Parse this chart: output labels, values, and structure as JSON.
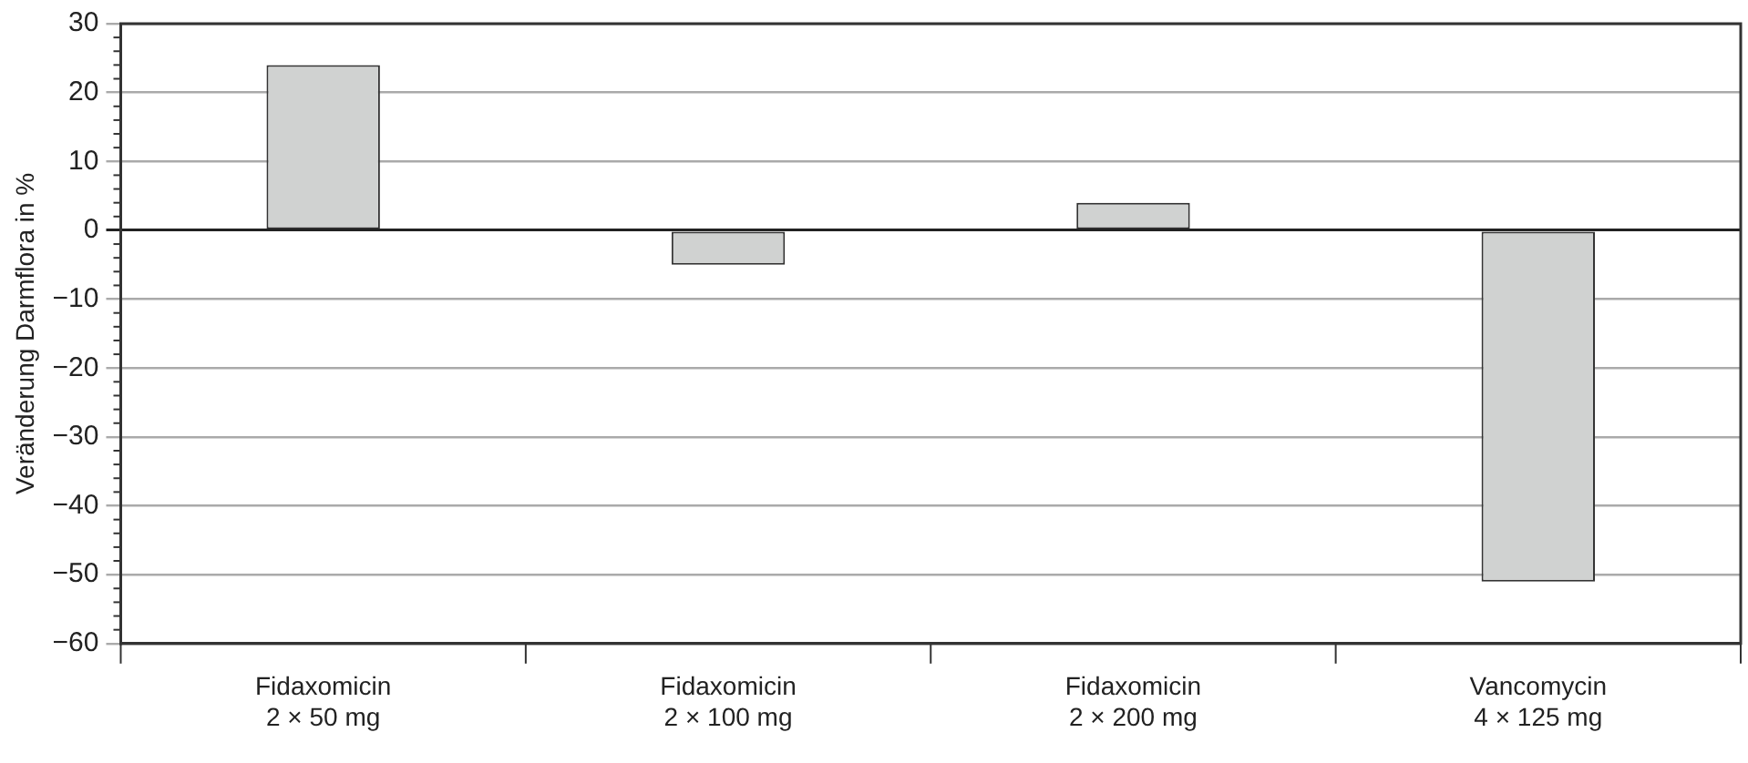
{
  "chart_data": {
    "type": "bar",
    "ylabel": "Veränderung Darmflora in %",
    "categories": [
      "Fidaxomicin\n2 × 50 mg",
      "Fidaxomicin\n2 × 100 mg",
      "Fidaxomicin\n2 × 200 mg",
      "Vancomycin\n4 × 125 mg"
    ],
    "values": [
      24,
      -5,
      4,
      -51
    ],
    "color": "#d0d2d1",
    "ylim": [
      -60,
      30
    ],
    "yticks": [
      {
        "value": -60,
        "label": "−60"
      },
      {
        "value": -50,
        "label": "−50"
      },
      {
        "value": -40,
        "label": "−40"
      },
      {
        "value": -30,
        "label": "−30"
      },
      {
        "value": -20,
        "label": "−20"
      },
      {
        "value": -10,
        "label": "−10"
      },
      0,
      10,
      20,
      30
    ],
    "grid": "y",
    "legend": false
  }
}
